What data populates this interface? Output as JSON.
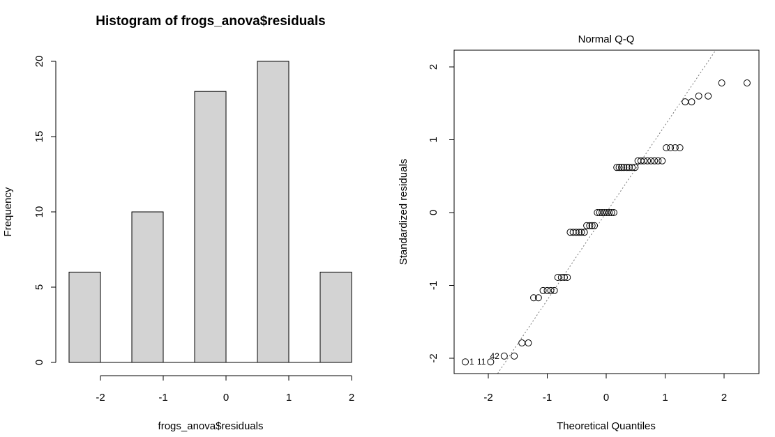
{
  "chart_data": [
    {
      "type": "bar",
      "title": "Histogram of frogs_anova$residuals",
      "xlabel": "frogs_anova$residuals",
      "ylabel": "Frequency",
      "bins": [
        {
          "from": -2.5,
          "to": -2.0,
          "count": 6
        },
        {
          "from": -1.5,
          "to": -1.0,
          "count": 10
        },
        {
          "from": -0.5,
          "to": 0.0,
          "count": 18
        },
        {
          "from": 0.5,
          "to": 1.0,
          "count": 20
        },
        {
          "from": 1.5,
          "to": 2.0,
          "count": 6
        }
      ],
      "xticks": [
        "-2",
        "-1",
        "0",
        "1",
        "2"
      ],
      "yticks": [
        "0",
        "5",
        "10",
        "15",
        "20"
      ],
      "xlim": [
        -2.5,
        2.0
      ],
      "ylim": [
        0,
        20
      ],
      "bar_fill": "#d3d3d3",
      "bar_stroke": "#000000",
      "grid": false
    },
    {
      "type": "scatter",
      "title": "Normal Q-Q",
      "xlabel": "Theoretical Quantiles",
      "ylabel": "Standardized residuals",
      "xticks": [
        "-2",
        "-1",
        "0",
        "1",
        "2"
      ],
      "yticks": [
        "-2",
        "-1",
        "0",
        "1",
        "2"
      ],
      "xlim": [
        -2.5,
        2.5
      ],
      "ylim": [
        -2.2,
        2.2
      ],
      "reference_line": {
        "slope": 1.2,
        "intercept": 0.0,
        "style": "dotted",
        "color": "#777777"
      },
      "point_labels": [
        "1",
        "11",
        "42"
      ],
      "points": [
        {
          "x": -2.39,
          "y": -2.05,
          "label": "1"
        },
        {
          "x": -1.96,
          "y": -2.05,
          "label": "11"
        },
        {
          "x": -1.73,
          "y": -1.97,
          "label": "42"
        },
        {
          "x": -1.56,
          "y": -1.97
        },
        {
          "x": -1.43,
          "y": -1.79
        },
        {
          "x": -1.32,
          "y": -1.79
        },
        {
          "x": -1.23,
          "y": -1.17
        },
        {
          "x": -1.15,
          "y": -1.17
        },
        {
          "x": -1.07,
          "y": -1.07
        },
        {
          "x": -1.0,
          "y": -1.07
        },
        {
          "x": -0.94,
          "y": -1.07
        },
        {
          "x": -0.88,
          "y": -1.07
        },
        {
          "x": -0.82,
          "y": -0.89
        },
        {
          "x": -0.76,
          "y": -0.89
        },
        {
          "x": -0.71,
          "y": -0.89
        },
        {
          "x": -0.66,
          "y": -0.89
        },
        {
          "x": -0.61,
          "y": -0.27
        },
        {
          "x": -0.56,
          "y": -0.27
        },
        {
          "x": -0.51,
          "y": -0.27
        },
        {
          "x": -0.46,
          "y": -0.27
        },
        {
          "x": -0.42,
          "y": -0.27
        },
        {
          "x": -0.37,
          "y": -0.27
        },
        {
          "x": -0.33,
          "y": -0.18
        },
        {
          "x": -0.28,
          "y": -0.18
        },
        {
          "x": -0.24,
          "y": -0.18
        },
        {
          "x": -0.2,
          "y": -0.18
        },
        {
          "x": -0.15,
          "y": 0.0
        },
        {
          "x": -0.11,
          "y": 0.0
        },
        {
          "x": -0.07,
          "y": 0.0
        },
        {
          "x": -0.03,
          "y": 0.0
        },
        {
          "x": 0.01,
          "y": 0.0
        },
        {
          "x": 0.05,
          "y": 0.0
        },
        {
          "x": 0.09,
          "y": 0.0
        },
        {
          "x": 0.13,
          "y": 0.0
        },
        {
          "x": 0.18,
          "y": 0.62
        },
        {
          "x": 0.22,
          "y": 0.62
        },
        {
          "x": 0.26,
          "y": 0.62
        },
        {
          "x": 0.3,
          "y": 0.62
        },
        {
          "x": 0.35,
          "y": 0.62
        },
        {
          "x": 0.39,
          "y": 0.62
        },
        {
          "x": 0.44,
          "y": 0.62
        },
        {
          "x": 0.49,
          "y": 0.62
        },
        {
          "x": 0.54,
          "y": 0.71
        },
        {
          "x": 0.59,
          "y": 0.71
        },
        {
          "x": 0.64,
          "y": 0.71
        },
        {
          "x": 0.7,
          "y": 0.71
        },
        {
          "x": 0.76,
          "y": 0.71
        },
        {
          "x": 0.82,
          "y": 0.71
        },
        {
          "x": 0.88,
          "y": 0.71
        },
        {
          "x": 0.95,
          "y": 0.71
        },
        {
          "x": 1.02,
          "y": 0.89
        },
        {
          "x": 1.09,
          "y": 0.89
        },
        {
          "x": 1.17,
          "y": 0.89
        },
        {
          "x": 1.25,
          "y": 0.89
        },
        {
          "x": 1.34,
          "y": 1.52
        },
        {
          "x": 1.45,
          "y": 1.52
        },
        {
          "x": 1.57,
          "y": 1.6
        },
        {
          "x": 1.73,
          "y": 1.6
        },
        {
          "x": 1.96,
          "y": 1.78
        },
        {
          "x": 2.39,
          "y": 1.78
        }
      ],
      "point_style": "open-circle",
      "grid": false
    }
  ]
}
